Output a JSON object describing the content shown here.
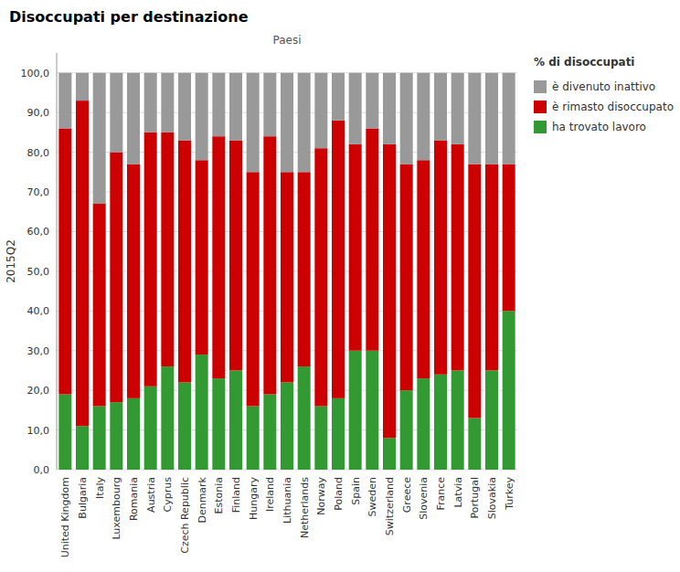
{
  "chart_data": {
    "type": "bar",
    "stacked": true,
    "title": "Disoccupati per destinazione",
    "x_label": "Paesi",
    "y_label": "2015Q2",
    "legend_title": "% di disoccupati",
    "legend": "right",
    "grid": true,
    "categories": [
      "United Kingdom",
      "Bulgaria",
      "Italy",
      "Luxembourg",
      "Romania",
      "Austria",
      "Cyprus",
      "Czech Republic",
      "Denmark",
      "Estonia",
      "Finland",
      "Hungary",
      "Ireland",
      "Lithuania",
      "Netherlands",
      "Norway",
      "Poland",
      "Spain",
      "Sweden",
      "Switzerland",
      "Greece",
      "Slovenia",
      "France",
      "Latvia",
      "Portugal",
      "Slovakia",
      "Turkey"
    ],
    "series": [
      {
        "name": "ha trovato lavoro",
        "color": "#339933",
        "values": [
          19,
          11,
          16,
          17,
          18,
          21,
          26,
          22,
          29,
          23,
          25,
          16,
          19,
          22,
          26,
          16,
          18,
          30,
          30,
          8,
          20,
          23,
          24,
          25,
          13,
          25,
          40
        ]
      },
      {
        "name": "è rimasto disoccupato",
        "color": "#cc0000",
        "values": [
          67,
          82,
          51,
          63,
          59,
          64,
          59,
          61,
          49,
          61,
          58,
          59,
          65,
          53,
          49,
          65,
          70,
          52,
          56,
          74,
          57,
          55,
          59,
          57,
          64,
          52,
          37
        ]
      },
      {
        "name": "è divenuto inattivo",
        "color": "#999999",
        "values": [
          14,
          7,
          33,
          20,
          23,
          15,
          15,
          17,
          22,
          16,
          17,
          25,
          16,
          25,
          25,
          19,
          12,
          18,
          14,
          18,
          23,
          22,
          17,
          18,
          23,
          23,
          23
        ]
      }
    ],
    "ylim": [
      0,
      105
    ],
    "yticks": [
      {
        "value": 0,
        "label": "0,0"
      },
      {
        "value": 10,
        "label": "10,0"
      },
      {
        "value": 20,
        "label": "20,0"
      },
      {
        "value": 30,
        "label": "30,0"
      },
      {
        "value": 40,
        "label": "40,0"
      },
      {
        "value": 50,
        "label": "50,0"
      },
      {
        "value": 60,
        "label": "60,0"
      },
      {
        "value": 70,
        "label": "70,0"
      },
      {
        "value": 80,
        "label": "80,0"
      },
      {
        "value": 90,
        "label": "90,0"
      },
      {
        "value": 100,
        "label": "100,0"
      }
    ]
  }
}
